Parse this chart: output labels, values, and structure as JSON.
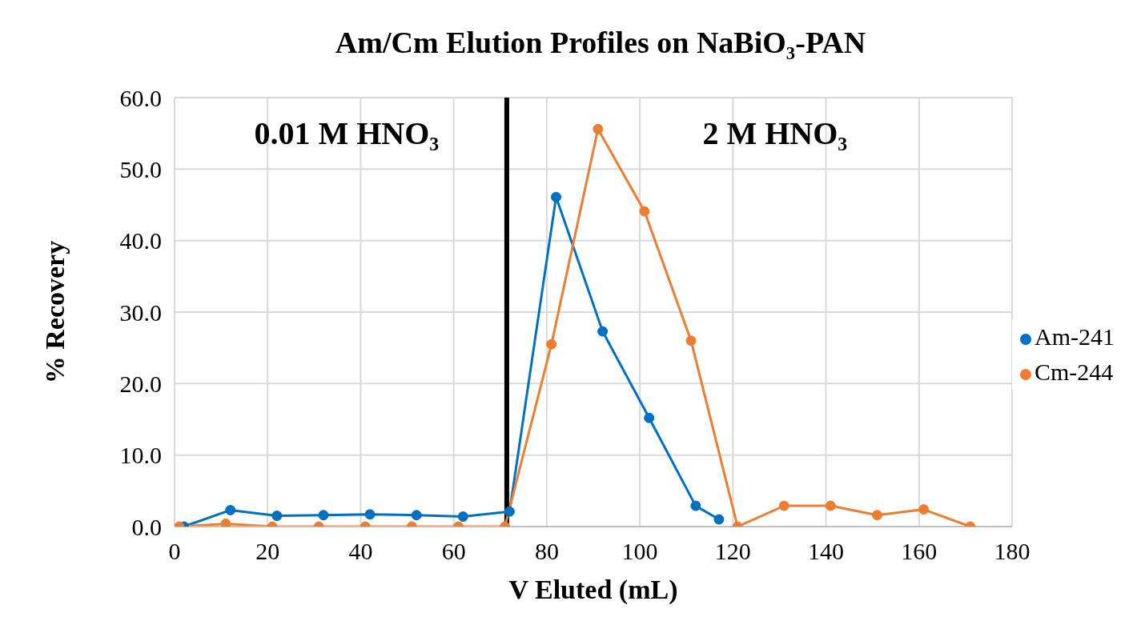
{
  "chart_data": {
    "type": "line",
    "title": "Am/Cm Elution Profiles on NaBiO₃-PAN",
    "xlabel": "V Eluted (mL)",
    "ylabel": "% Recovery",
    "series": [
      {
        "name": "Am-241",
        "color": "#0070c0",
        "x": [
          2,
          12,
          22,
          32,
          42,
          52,
          62,
          72,
          82,
          92,
          102,
          112,
          117
        ],
        "values": [
          0.0,
          2.3,
          1.5,
          1.6,
          1.7,
          1.6,
          1.4,
          2.1,
          46.1,
          27.3,
          15.2,
          2.9,
          1.0
        ]
      },
      {
        "name": "Cm-244",
        "color": "#ed7d31",
        "x": [
          1,
          11,
          21,
          31,
          41,
          51,
          61,
          71,
          81,
          91,
          101,
          111,
          121,
          131,
          141,
          151,
          161,
          171
        ],
        "values": [
          0.0,
          0.4,
          0.0,
          0.0,
          0.0,
          0.0,
          0.0,
          0.0,
          25.5,
          55.6,
          44.1,
          26.0,
          0.0,
          2.9,
          2.9,
          1.6,
          2.4,
          0.0
        ]
      }
    ],
    "xlim": [
      0,
      180
    ],
    "xticks": [
      0,
      20,
      40,
      60,
      80,
      100,
      120,
      140,
      160,
      180
    ],
    "ylim": [
      0,
      60
    ],
    "yticks": [
      {
        "value": 0,
        "label": "0.0"
      },
      {
        "value": 10,
        "label": "10.0"
      },
      {
        "value": 20,
        "label": "20.0"
      },
      {
        "value": 30,
        "label": "30.0"
      },
      {
        "value": 40,
        "label": "40.0"
      },
      {
        "value": 50,
        "label": "50.0"
      },
      {
        "value": 60,
        "label": "60.0"
      }
    ],
    "ref_lines": [
      {
        "axis": "x",
        "value": 71.4,
        "color": "#000000"
      }
    ],
    "annotations": [
      "0.01 M HNO₃",
      "2 M HNO₃"
    ],
    "grid": true,
    "legend": "right",
    "marker": "circle",
    "line_style": "solid"
  }
}
